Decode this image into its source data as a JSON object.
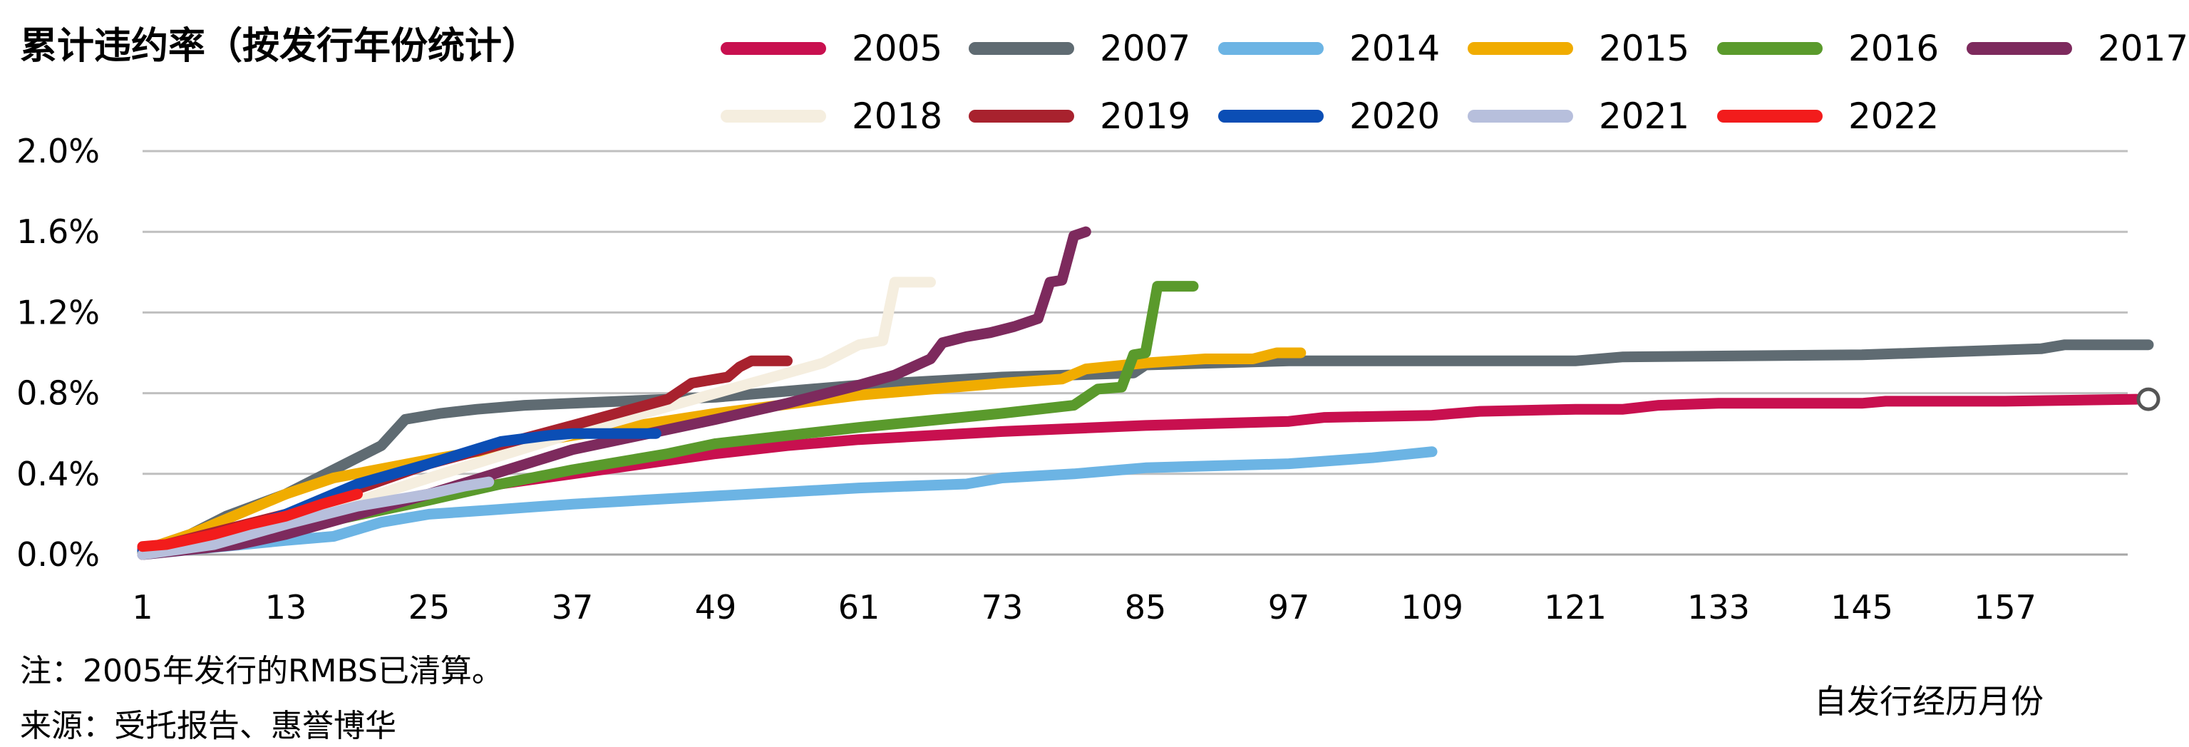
{
  "title": "累计违约率（按发行年份统计）",
  "note": "注：2005年发行的RMBS已清算。",
  "source": "来源：受托报告、惠誉博华",
  "chart_data": {
    "type": "line",
    "title": "累计违约率（按发行年份统计）",
    "xlabel": "自发行经历月份",
    "ylabel": "",
    "xlim": [
      1,
      169
    ],
    "ylim": [
      0,
      2.0
    ],
    "x_ticks": [
      1,
      13,
      25,
      37,
      49,
      61,
      73,
      85,
      97,
      109,
      121,
      133,
      145,
      157
    ],
    "y_ticks": [
      0.0,
      0.4,
      0.8,
      1.2,
      1.6,
      2.0
    ],
    "y_tick_labels": [
      "0.0%",
      "0.4%",
      "0.8%",
      "1.2%",
      "1.6%",
      "2.0%"
    ],
    "grid": "horizontal",
    "legend_position": "top",
    "series": [
      {
        "name": "2005",
        "color": "#C8104F",
        "points": [
          [
            1,
            0.03
          ],
          [
            13,
            0.17
          ],
          [
            25,
            0.3
          ],
          [
            37,
            0.4
          ],
          [
            49,
            0.5
          ],
          [
            55,
            0.54
          ],
          [
            61,
            0.57
          ],
          [
            73,
            0.61
          ],
          [
            85,
            0.64
          ],
          [
            97,
            0.66
          ],
          [
            100,
            0.68
          ],
          [
            109,
            0.69
          ],
          [
            113,
            0.71
          ],
          [
            121,
            0.72
          ],
          [
            125,
            0.72
          ],
          [
            128,
            0.74
          ],
          [
            133,
            0.75
          ],
          [
            145,
            0.75
          ],
          [
            147,
            0.76
          ],
          [
            157,
            0.76
          ],
          [
            168,
            0.77
          ]
        ]
      },
      {
        "name": "2007",
        "color": "#5F6B72",
        "points": [
          [
            1,
            0.02
          ],
          [
            5,
            0.1
          ],
          [
            8,
            0.19
          ],
          [
            13,
            0.3
          ],
          [
            17,
            0.42
          ],
          [
            21,
            0.54
          ],
          [
            23,
            0.67
          ],
          [
            26,
            0.7
          ],
          [
            29,
            0.72
          ],
          [
            33,
            0.74
          ],
          [
            37,
            0.75
          ],
          [
            49,
            0.78
          ],
          [
            61,
            0.84
          ],
          [
            73,
            0.88
          ],
          [
            84,
            0.9
          ],
          [
            85,
            0.94
          ],
          [
            97,
            0.96
          ],
          [
            121,
            0.96
          ],
          [
            125,
            0.98
          ],
          [
            145,
            0.99
          ],
          [
            150,
            1.0
          ],
          [
            160,
            1.02
          ],
          [
            162,
            1.04
          ],
          [
            169,
            1.04
          ]
        ]
      },
      {
        "name": "2014",
        "color": "#6CB4E4",
        "points": [
          [
            1,
            0.0
          ],
          [
            6,
            0.03
          ],
          [
            13,
            0.07
          ],
          [
            17,
            0.09
          ],
          [
            21,
            0.16
          ],
          [
            25,
            0.2
          ],
          [
            30,
            0.22
          ],
          [
            37,
            0.25
          ],
          [
            49,
            0.29
          ],
          [
            61,
            0.33
          ],
          [
            70,
            0.35
          ],
          [
            73,
            0.38
          ],
          [
            79,
            0.4
          ],
          [
            85,
            0.43
          ],
          [
            97,
            0.45
          ],
          [
            104,
            0.48
          ],
          [
            109,
            0.51
          ]
        ]
      },
      {
        "name": "2015",
        "color": "#F0AC00",
        "points": [
          [
            1,
            0.02
          ],
          [
            5,
            0.1
          ],
          [
            9,
            0.2
          ],
          [
            13,
            0.3
          ],
          [
            17,
            0.38
          ],
          [
            25,
            0.47
          ],
          [
            37,
            0.59
          ],
          [
            49,
            0.7
          ],
          [
            61,
            0.79
          ],
          [
            73,
            0.85
          ],
          [
            78,
            0.87
          ],
          [
            80,
            0.92
          ],
          [
            85,
            0.95
          ],
          [
            90,
            0.97
          ],
          [
            94,
            0.97
          ],
          [
            96,
            1.0
          ],
          [
            98,
            1.0
          ]
        ]
      },
      {
        "name": "2016",
        "color": "#5A9A2C",
        "points": [
          [
            1,
            0.01
          ],
          [
            9,
            0.08
          ],
          [
            13,
            0.12
          ],
          [
            25,
            0.27
          ],
          [
            31,
            0.35
          ],
          [
            37,
            0.42
          ],
          [
            45,
            0.5
          ],
          [
            49,
            0.55
          ],
          [
            61,
            0.63
          ],
          [
            73,
            0.7
          ],
          [
            79,
            0.74
          ],
          [
            81,
            0.82
          ],
          [
            83,
            0.83
          ],
          [
            84,
            0.99
          ],
          [
            85,
            1.0
          ],
          [
            86,
            1.33
          ],
          [
            89,
            1.33
          ]
        ]
      },
      {
        "name": "2017",
        "color": "#7D2A5D",
        "points": [
          [
            1,
            0.0
          ],
          [
            9,
            0.05
          ],
          [
            13,
            0.1
          ],
          [
            25,
            0.3
          ],
          [
            37,
            0.52
          ],
          [
            49,
            0.67
          ],
          [
            55,
            0.75
          ],
          [
            61,
            0.84
          ],
          [
            64,
            0.89
          ],
          [
            67,
            0.97
          ],
          [
            68,
            1.05
          ],
          [
            70,
            1.08
          ],
          [
            72,
            1.1
          ],
          [
            74,
            1.13
          ],
          [
            76,
            1.17
          ],
          [
            77,
            1.35
          ],
          [
            78,
            1.36
          ],
          [
            79,
            1.58
          ],
          [
            80,
            1.6
          ]
        ]
      },
      {
        "name": "2018",
        "color": "#F5EEDF",
        "points": [
          [
            1,
            0.02
          ],
          [
            13,
            0.15
          ],
          [
            25,
            0.38
          ],
          [
            37,
            0.6
          ],
          [
            49,
            0.8
          ],
          [
            55,
            0.9
          ],
          [
            58,
            0.95
          ],
          [
            61,
            1.04
          ],
          [
            63,
            1.06
          ],
          [
            64,
            1.35
          ],
          [
            67,
            1.35
          ]
        ]
      },
      {
        "name": "2019",
        "color": "#A8222E",
        "points": [
          [
            1,
            0.02
          ],
          [
            13,
            0.2
          ],
          [
            25,
            0.45
          ],
          [
            37,
            0.64
          ],
          [
            45,
            0.77
          ],
          [
            47,
            0.85
          ],
          [
            50,
            0.88
          ],
          [
            51,
            0.93
          ],
          [
            52,
            0.96
          ],
          [
            55,
            0.96
          ]
        ]
      },
      {
        "name": "2020",
        "color": "#0B4EB5",
        "points": [
          [
            1,
            0.02
          ],
          [
            9,
            0.12
          ],
          [
            13,
            0.2
          ],
          [
            19,
            0.35
          ],
          [
            25,
            0.45
          ],
          [
            31,
            0.56
          ],
          [
            35,
            0.59
          ],
          [
            37,
            0.6
          ],
          [
            43,
            0.6
          ],
          [
            44,
            0.6
          ]
        ]
      },
      {
        "name": "2021",
        "color": "#B7BFDC",
        "points": [
          [
            1,
            0.0
          ],
          [
            7,
            0.05
          ],
          [
            13,
            0.15
          ],
          [
            19,
            0.24
          ],
          [
            25,
            0.3
          ],
          [
            28,
            0.34
          ],
          [
            30,
            0.36
          ]
        ]
      },
      {
        "name": "2022",
        "color": "#F21C1C",
        "points": [
          [
            1,
            0.04
          ],
          [
            3,
            0.05
          ],
          [
            7,
            0.1
          ],
          [
            10,
            0.15
          ],
          [
            13,
            0.19
          ],
          [
            16,
            0.25
          ],
          [
            19,
            0.3
          ]
        ]
      }
    ],
    "end_marker": {
      "series": "2005",
      "x": 169,
      "y": 0.77
    }
  }
}
